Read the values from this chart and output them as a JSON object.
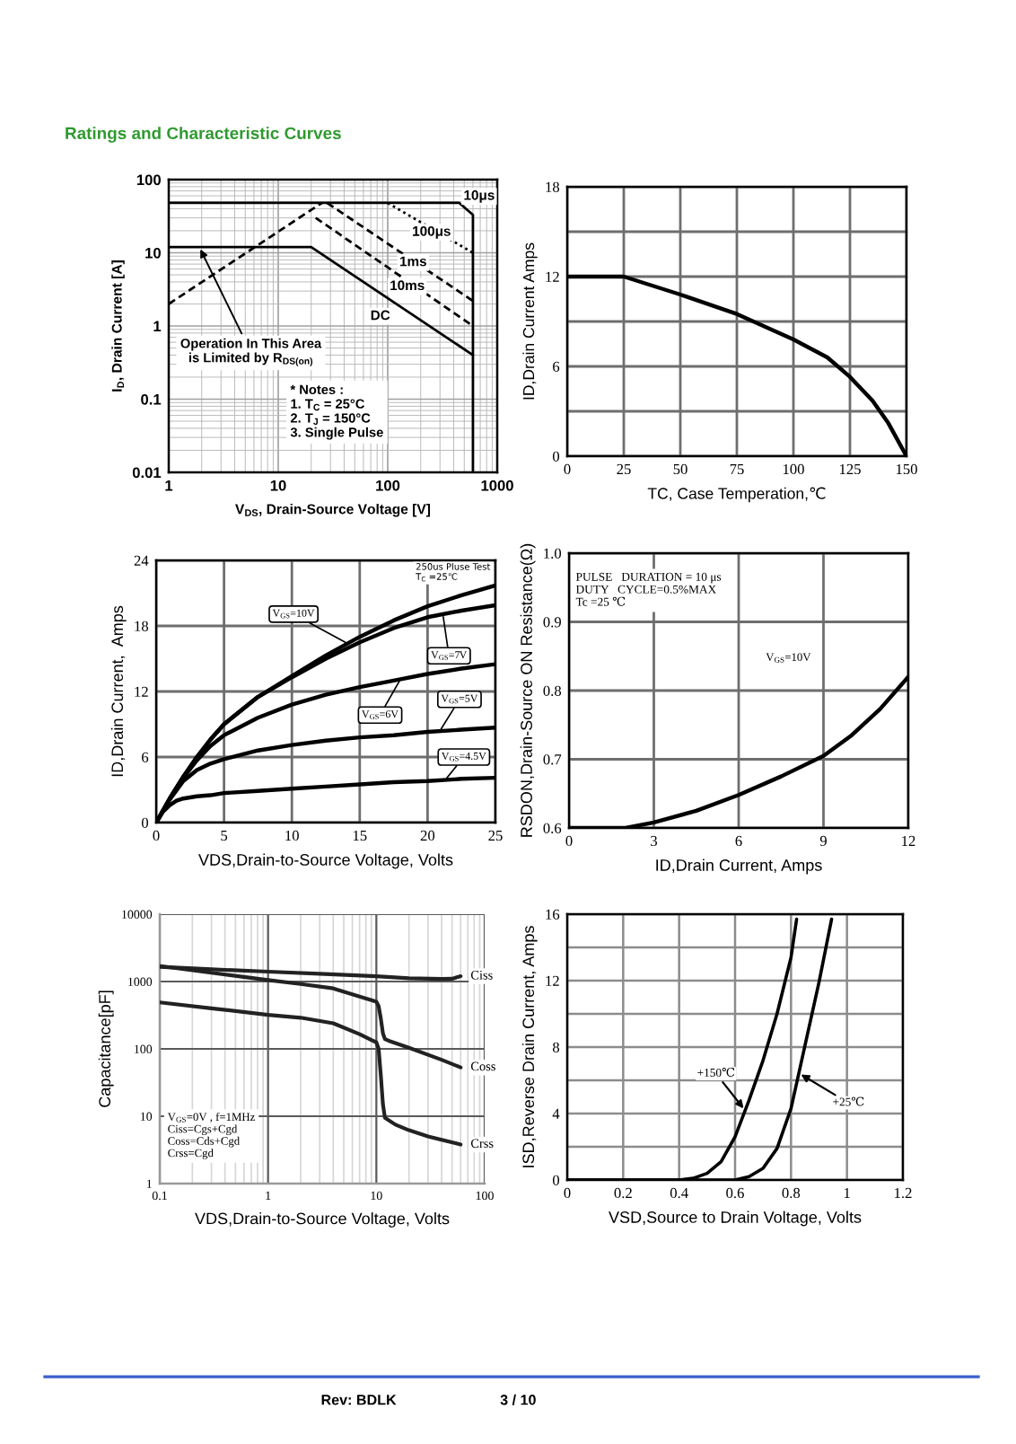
{
  "chart_data": [
    {
      "type": "other",
      "title": "Ratings and Characteristic Curves"
    },
    {
      "type": "line",
      "xlabel": "V$_{DS}$, Drain-Source Voltage [V]",
      "ylabel": "I$_{D}$, Drain Current [A]",
      "log": "xy",
      "xlim": [
        1,
        1000
      ],
      "ylim": [
        0.01,
        100
      ],
      "xticks": [
        1,
        10,
        100,
        1000
      ],
      "yticks": [
        0.01,
        0.1,
        1,
        10,
        100
      ],
      "grid": true,
      "series": [
        {
          "color": "#000000",
          "line_style": "dashed",
          "x": [
            1,
            25
          ],
          "values": [
            2,
            48
          ]
        },
        {
          "name": "10μs",
          "color": "#000000",
          "line_style": "solid",
          "x": [
            1,
            450,
            600,
            600
          ],
          "values": [
            48,
            48,
            33,
            0.01
          ]
        },
        {
          "name": "100μs",
          "color": "#000000",
          "line_style": "dotted",
          "x": [
            100,
            600
          ],
          "values": [
            48,
            10
          ]
        },
        {
          "name": "1ms",
          "color": "#000000",
          "line_style": "dashed",
          "x": [
            28,
            600
          ],
          "values": [
            48,
            2.2
          ]
        },
        {
          "name": "10ms",
          "color": "#000000",
          "line_style": "dashed",
          "x": [
            22,
            600
          ],
          "values": [
            30,
            1
          ]
        },
        {
          "name": "DC",
          "color": "#000000",
          "line_style": "solid",
          "x": [
            1,
            20,
            600
          ],
          "values": [
            12,
            12,
            0.4
          ]
        }
      ],
      "annotations": [
        {
          "text": "Operation In This Area\nis Limited by R$_{DS(on)}$",
          "x": 1.9,
          "y": 12
        },
        "* Notes :\n1. T$_{C}$ = 25°C\n2. T$_{J}$ = 150°C\n3. Single Pulse"
      ]
    },
    {
      "type": "line",
      "xlabel": "TC, Case Temperation,℃",
      "ylabel": "ID,Drain Current Amps",
      "xlim": [
        0,
        150
      ],
      "ylim": [
        0,
        18
      ],
      "xticks": [
        0,
        25,
        50,
        75,
        100,
        125,
        150
      ],
      "yticks": [
        0,
        {
          "value": 3,
          "label": null
        },
        6,
        {
          "value": 9,
          "label": null
        },
        12,
        {
          "value": 15,
          "label": null
        },
        18
      ],
      "grid": true,
      "series": [
        {
          "color": "#000000",
          "x": [
            0,
            25,
            50,
            75,
            100,
            115,
            125,
            135,
            142,
            150
          ],
          "values": [
            12,
            12,
            10.8,
            9.5,
            7.8,
            6.6,
            5.3,
            3.7,
            2.2,
            0
          ]
        }
      ]
    },
    {
      "type": "line",
      "xlabel": "VDS,Drain-to-Source Voltage, Volts",
      "ylabel": "ID,Drain Current,  Amps",
      "xlim": [
        0,
        25
      ],
      "ylim": [
        0,
        24
      ],
      "xticks": [
        0,
        5,
        10,
        15,
        20,
        25
      ],
      "yticks": [
        0,
        6,
        12,
        18,
        24
      ],
      "grid": true,
      "series": [
        {
          "name": "V$_{GS}$=10V",
          "color": "#000000",
          "x": [
            0,
            1,
            2,
            3,
            4,
            5,
            7.5,
            10,
            12.5,
            15,
            17.5,
            20,
            22.5,
            25
          ],
          "values": [
            0,
            2.2,
            4.2,
            6.0,
            7.6,
            9.0,
            11.5,
            13.4,
            15.3,
            17.0,
            18.5,
            19.8,
            20.8,
            21.7
          ]
        },
        {
          "name": "V$_{GS}$=7V",
          "color": "#000000",
          "x": [
            0,
            1,
            2,
            3,
            4,
            5,
            7.5,
            10,
            12.5,
            15,
            17.5,
            20,
            22.5,
            25
          ],
          "values": [
            0,
            2.2,
            4.2,
            6.0,
            7.6,
            9.0,
            11.5,
            13.3,
            15.0,
            16.5,
            17.8,
            18.8,
            19.4,
            19.9
          ]
        },
        {
          "name": "V$_{GS}$=6V",
          "color": "#000000",
          "x": [
            0,
            1,
            2,
            3,
            4,
            5,
            7.5,
            10,
            12.5,
            15,
            17.5,
            20,
            22.5,
            25
          ],
          "values": [
            0,
            2.2,
            4.1,
            5.7,
            7.0,
            8.0,
            9.6,
            10.8,
            11.7,
            12.4,
            13.0,
            13.6,
            14.1,
            14.5
          ]
        },
        {
          "name": "V$_{GS}$=5V",
          "color": "#000000",
          "x": [
            0,
            1,
            2,
            3,
            4,
            5,
            7.5,
            10,
            12.5,
            15,
            17.5,
            20,
            22.5,
            25
          ],
          "values": [
            0,
            2.1,
            3.8,
            4.8,
            5.4,
            5.8,
            6.6,
            7.1,
            7.5,
            7.8,
            8.0,
            8.3,
            8.5,
            8.7
          ]
        },
        {
          "name": "V$_{GS}$=4.5V",
          "color": "#000000",
          "x": [
            0,
            0.5,
            1,
            1.5,
            2,
            3,
            4,
            5,
            7.5,
            10,
            12.5,
            15,
            17.5,
            20,
            22.5,
            25
          ],
          "values": [
            0,
            1.0,
            1.6,
            2.0,
            2.2,
            2.4,
            2.5,
            2.7,
            2.9,
            3.1,
            3.3,
            3.5,
            3.7,
            3.8,
            4.0,
            4.1
          ]
        }
      ],
      "annotations": [
        "250us Pluse Test\nT$_{C}$ =25℃"
      ]
    },
    {
      "type": "line",
      "xlabel": "ID,Drain Current, Amps",
      "ylabel": "RSDON,Drain-Source ON Resistance(Ω)",
      "xlim": [
        0,
        12
      ],
      "ylim": [
        0.6,
        1.0
      ],
      "xticks": [
        0,
        3,
        6,
        9,
        12
      ],
      "yticks": [
        0.6,
        0.7,
        0.8,
        0.9,
        {
          "value": 1,
          "label": "1.0"
        }
      ],
      "grid": true,
      "series": [
        {
          "color": "#000000",
          "x": [
            0,
            2,
            3,
            4.5,
            6,
            7.5,
            9,
            10,
            11,
            12
          ],
          "values": [
            0.6,
            0.6,
            0.608,
            0.625,
            0.648,
            0.675,
            0.705,
            0.735,
            0.773,
            0.82
          ]
        }
      ],
      "annotations": [
        "PULSE   DURATION = 10 μs\nDUTY   CYCLE=0.5%MAX\nTc =25 ℃",
        "V$_{GS}$=10V"
      ]
    },
    {
      "type": "line",
      "xlabel": "VDS,Drain-to-Source Voltage, Volts",
      "ylabel": "Capacitance[pF]",
      "log": "xy",
      "xlim": [
        0.1,
        100
      ],
      "ylim": [
        1,
        10000
      ],
      "xticks": [
        0.1,
        1,
        10,
        100
      ],
      "yticks": [
        1,
        10,
        100,
        1000,
        10000
      ],
      "grid": true,
      "series": [
        {
          "name": "Ciss",
          "color": "#222222",
          "x": [
            0.1,
            0.3,
            1,
            3,
            10,
            20,
            40,
            50,
            60
          ],
          "values": [
            1650,
            1520,
            1400,
            1300,
            1200,
            1120,
            1090,
            1100,
            1200
          ]
        },
        {
          "name": "Coss",
          "color": "#222222",
          "x": [
            0.1,
            0.3,
            1,
            2,
            4,
            7,
            9,
            10,
            10.5,
            11,
            11.5,
            12,
            13,
            20,
            40,
            60
          ],
          "values": [
            1700,
            1350,
            1050,
            920,
            790,
            600,
            530,
            500,
            430,
            280,
            170,
            140,
            132,
            104,
            69,
            53
          ]
        },
        {
          "name": "Crss",
          "color": "#222222",
          "x": [
            0.1,
            0.3,
            1,
            2,
            4,
            7,
            9,
            10,
            10.5,
            11,
            11.5,
            12,
            15,
            20,
            30,
            60
          ],
          "values": [
            490,
            400,
            320,
            290,
            240,
            165,
            135,
            125,
            100,
            40,
            15,
            9.5,
            7.5,
            6.2,
            5.0,
            3.8
          ]
        }
      ],
      "annotations": [
        "V$_{GS}$=0V , f=1MHz\nCiss=Cgs+Cgd\nCoss=Cds+Cgd\nCrss=Cgd"
      ]
    },
    {
      "type": "line",
      "xlabel": "VSD,Source to Drain Voltage, Volts",
      "ylabel": "ISD,Reverse Drain Current, Amps",
      "xlim": [
        0,
        1.2
      ],
      "ylim": [
        0,
        16
      ],
      "xticks": [
        0,
        0.2,
        0.4,
        0.6,
        0.8,
        1,
        1.2
      ],
      "yticks": [
        0,
        {
          "value": 2,
          "label": null
        },
        4,
        {
          "value": 6,
          "label": null
        },
        8,
        {
          "value": 10,
          "label": null
        },
        12,
        {
          "value": 14,
          "label": null
        },
        16
      ],
      "grid": true,
      "series": [
        {
          "name": "+150℃",
          "color": "#000000",
          "x": [
            0,
            0.4,
            0.45,
            0.5,
            0.55,
            0.6,
            0.65,
            0.7,
            0.75,
            0.8,
            0.82
          ],
          "values": [
            0,
            0,
            0.1,
            0.4,
            1.1,
            2.6,
            4.8,
            7.2,
            10,
            13.4,
            15.7
          ]
        },
        {
          "name": "+25℃",
          "color": "#000000",
          "x": [
            0,
            0.6,
            0.65,
            0.7,
            0.75,
            0.8,
            0.85,
            0.9,
            0.945
          ],
          "values": [
            0,
            0,
            0.2,
            0.7,
            1.9,
            4.3,
            8.1,
            11.9,
            15.7
          ]
        }
      ]
    },
    {
      "type": "other",
      "annotations": [
        "Rev: BDLK",
        "3 / 10"
      ]
    }
  ]
}
